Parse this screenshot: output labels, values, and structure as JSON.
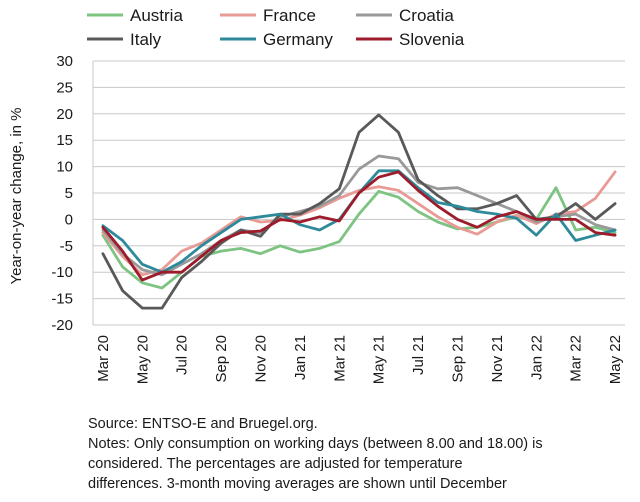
{
  "chart_data": {
    "type": "line",
    "ylabel": "Year-on-year change, in %",
    "ylim": [
      -20,
      30
    ],
    "yticks": [
      -20,
      -15,
      -10,
      -5,
      0,
      5,
      10,
      15,
      20,
      25,
      30
    ],
    "x": [
      "Mar 20",
      "Apr 20",
      "May 20",
      "Jun 20",
      "Jul 20",
      "Aug 20",
      "Sep 20",
      "Oct 20",
      "Nov 20",
      "Dec 20",
      "Jan 21",
      "Feb 21",
      "Mar 21",
      "Apr 21",
      "May 21",
      "Jun 21",
      "Jul 21",
      "Aug 21",
      "Sep 21",
      "Oct 21",
      "Nov 21",
      "Dec 21",
      "Jan 22",
      "Feb 22",
      "Mar 22",
      "Apr 22",
      "May 22"
    ],
    "xtick_labels": [
      "Mar 20",
      "May 20",
      "Jul 20",
      "Sep 20",
      "Nov 20",
      "Jan 21",
      "Mar 21",
      "May 21",
      "Jul 21",
      "Sep 21",
      "Nov 21",
      "Jan 22",
      "Mar 22",
      "May 22"
    ],
    "grid": "horizontal",
    "legend": "top",
    "series": [
      {
        "name": "Austria",
        "color": "#7dc382",
        "values": [
          -3,
          -9,
          -12,
          -13,
          -10,
          -7,
          -6,
          -5.5,
          -6.5,
          -5,
          -6.2,
          -5.5,
          -4.2,
          1,
          5.3,
          4.2,
          1.5,
          -0.5,
          -1.8,
          -1.5,
          -0.5,
          0.5,
          0,
          6,
          -2,
          -1.5,
          -2.5
        ]
      },
      {
        "name": "France",
        "color": "#e89a95",
        "values": [
          -2.5,
          -7,
          -10.5,
          -9.5,
          -6,
          -4.5,
          -2,
          0.5,
          -0.5,
          -0.2,
          0.8,
          2.2,
          4,
          5.5,
          6.2,
          5.5,
          3,
          0.5,
          -1.5,
          -2.8,
          -0.5,
          0.8,
          -0.8,
          1,
          1.5,
          4,
          9
        ]
      },
      {
        "name": "Croatia",
        "color": "#999999",
        "values": [
          -2,
          -6.5,
          -9.5,
          -10.5,
          -8.5,
          -6.5,
          -4,
          -2,
          -2.5,
          0.5,
          1.5,
          2.5,
          4.5,
          9.5,
          12,
          11.5,
          7,
          5.8,
          6,
          4.5,
          3,
          1.5,
          -0.5,
          0.5,
          1,
          -1,
          -2
        ]
      },
      {
        "name": "Italy",
        "color": "#595959",
        "values": [
          -6.5,
          -13.5,
          -16.8,
          -16.8,
          -11,
          -8,
          -4.5,
          -2,
          -3.2,
          1,
          1,
          3,
          5.8,
          16.5,
          19.8,
          16.5,
          7.5,
          4.5,
          2,
          2,
          3,
          4.5,
          0,
          0.5,
          3,
          0,
          3
        ]
      },
      {
        "name": "Germany",
        "color": "#2e8a9a",
        "values": [
          -1.2,
          -4,
          -8.5,
          -10,
          -8,
          -5,
          -2.5,
          0,
          0.5,
          1,
          -1,
          -2,
          0,
          5,
          9.2,
          9.2,
          6,
          3.2,
          2.5,
          1.5,
          1,
          0.2,
          -3,
          1,
          -4,
          -3,
          -2
        ]
      },
      {
        "name": "Slovenia",
        "color": "#9e1b2b",
        "values": [
          -1.5,
          -6,
          -11.5,
          -10,
          -10,
          -7,
          -4,
          -2.5,
          -2.2,
          0,
          -0.5,
          0.5,
          -0.3,
          5,
          8,
          9,
          5.5,
          2.5,
          0,
          -1.5,
          0.5,
          1.5,
          0,
          0,
          0,
          -2.5,
          -3
        ]
      }
    ]
  },
  "notes": {
    "line1": "Source: ENTSO-E and Bruegel.org.",
    "line2": "Notes: Only consumption on working days (between 8.00 and 18.00) is",
    "line3": "considered. The percentages are adjusted for temperature",
    "line4": "differences. 3-month moving averages are shown until December"
  }
}
